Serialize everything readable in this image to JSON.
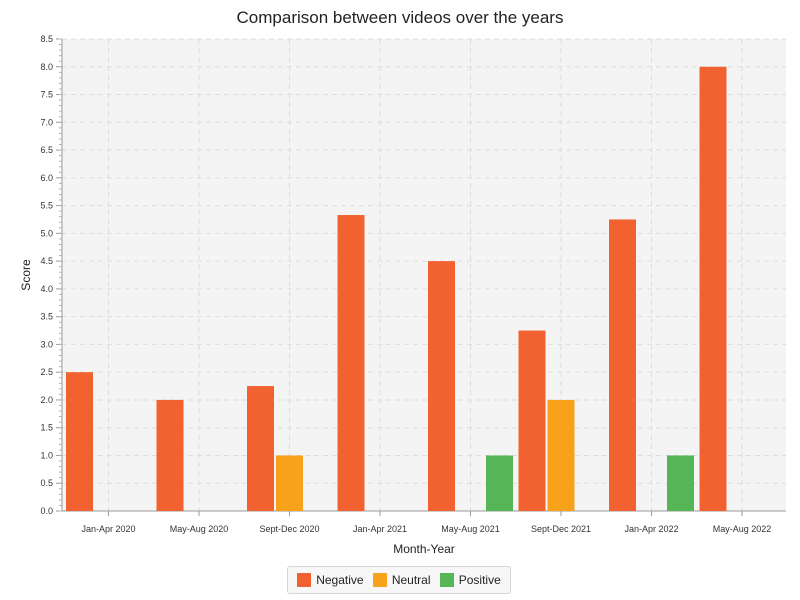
{
  "chart_data": {
    "type": "bar",
    "title": "Comparison between videos over the years",
    "xlabel": "Month-Year",
    "ylabel": "Score",
    "categories": [
      "Jan-Apr 2020",
      "May-Aug 2020",
      "Sept-Dec 2020",
      "Jan-Apr 2021",
      "May-Aug 2021",
      "Sept-Dec 2021",
      "Jan-Apr 2022",
      "May-Aug 2022"
    ],
    "ylim": [
      0,
      8.5
    ],
    "ytick_step": 0.5,
    "ytick_labels": [
      "0.0",
      "0.5",
      "1.0",
      "1.5",
      "2.0",
      "2.5",
      "3.0",
      "3.5",
      "4.0",
      "4.5",
      "5.0",
      "5.5",
      "6.0",
      "6.5",
      "7.0",
      "7.5",
      "8.0",
      "8.5"
    ],
    "grid": true,
    "legend_position": "bottom-center",
    "series": [
      {
        "name": "Negative",
        "color": "#f26230",
        "values": [
          2.5,
          2.0,
          2.25,
          5.33,
          4.5,
          3.25,
          5.25,
          8.0
        ]
      },
      {
        "name": "Neutral",
        "color": "#f8a11b",
        "values": [
          null,
          null,
          1.0,
          null,
          null,
          2.0,
          null,
          null
        ]
      },
      {
        "name": "Positive",
        "color": "#56b557",
        "values": [
          null,
          null,
          null,
          null,
          1.0,
          null,
          1.0,
          null
        ]
      }
    ]
  }
}
